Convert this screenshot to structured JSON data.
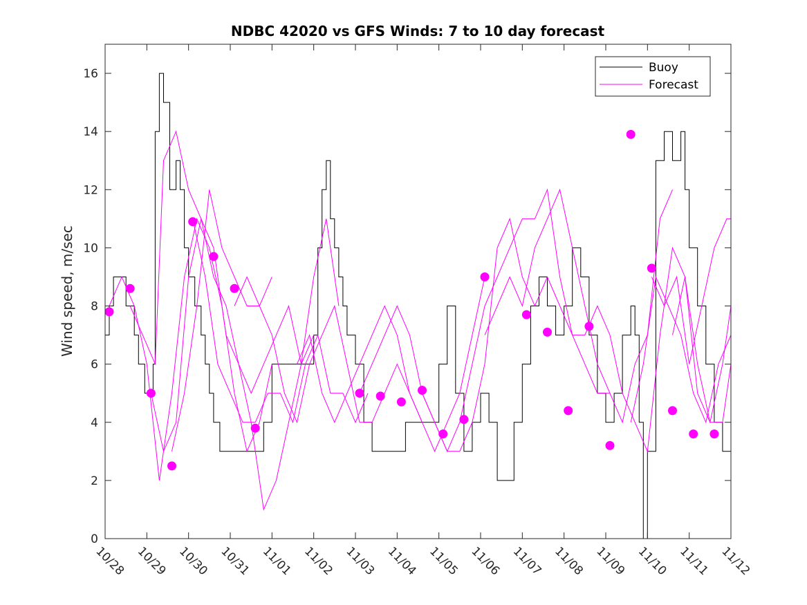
{
  "chart_data": {
    "type": "line",
    "title": "NDBC 42020 vs GFS Winds: 7 to 10 day forecast",
    "xlabel": "",
    "ylabel": "Wind speed, m/sec",
    "xlim": [
      0,
      15
    ],
    "ylim": [
      0,
      17
    ],
    "yticks": [
      0,
      2,
      4,
      6,
      8,
      10,
      12,
      14,
      16
    ],
    "xtick_labels": [
      "10/28",
      "10/29",
      "10/30",
      "10/31",
      "11/01",
      "11/02",
      "11/03",
      "11/04",
      "11/05",
      "11/06",
      "11/07",
      "11/08",
      "11/09",
      "11/10",
      "11/11",
      "11/12"
    ],
    "legend": [
      "Buoy",
      "Forecast"
    ],
    "legend_location": "top-right",
    "colors": {
      "buoy": "#000000",
      "forecast": "#ff00ff"
    },
    "buoy": {
      "name": "Buoy",
      "x": [
        0,
        0.1,
        0.2,
        0.4,
        0.5,
        0.7,
        0.8,
        0.95,
        1.05,
        1.15,
        1.2,
        1.3,
        1.4,
        1.55,
        1.7,
        1.8,
        1.9,
        2.0,
        2.15,
        2.3,
        2.4,
        2.5,
        2.6,
        2.75,
        2.9,
        3.0,
        3.2,
        3.4,
        3.6,
        3.8,
        4.0,
        4.2,
        4.4,
        4.6,
        4.8,
        5.0,
        5.1,
        5.2,
        5.3,
        5.4,
        5.5,
        5.6,
        5.7,
        5.8,
        6.0,
        6.2,
        6.4,
        6.5,
        6.6,
        6.8,
        7.0,
        7.2,
        7.4,
        7.6,
        7.8,
        8.0,
        8.2,
        8.4,
        8.6,
        8.8,
        9.0,
        9.2,
        9.4,
        9.5,
        9.6,
        9.8,
        10.0,
        10.2,
        10.4,
        10.6,
        10.8,
        11.0,
        11.2,
        11.4,
        11.6,
        11.8,
        12.0,
        12.2,
        12.4,
        12.6,
        12.7,
        12.8,
        12.9,
        13.0,
        13.2,
        13.4,
        13.6,
        13.8,
        13.9,
        14.0,
        14.2,
        14.4,
        14.6,
        14.8,
        15.0
      ],
      "y": [
        7,
        8,
        9,
        9,
        8,
        7,
        6,
        5,
        5,
        6,
        14,
        16,
        15,
        12,
        13,
        12,
        10,
        9,
        8,
        7,
        6,
        5,
        4,
        3,
        3,
        3,
        3,
        3,
        3,
        4,
        6,
        6,
        6,
        6,
        6,
        7,
        10,
        12,
        13,
        11,
        10,
        9,
        8,
        7,
        6,
        4,
        3,
        3,
        3,
        3,
        3,
        4,
        4,
        4,
        4,
        6,
        8,
        5,
        3,
        4,
        5,
        4,
        2,
        2,
        2,
        4,
        6,
        8,
        9,
        8,
        7,
        8,
        10,
        9,
        7,
        5,
        4,
        5,
        7,
        8,
        7,
        4,
        0,
        3,
        13,
        14,
        13,
        14,
        12,
        10,
        8,
        6,
        4,
        3,
        4
      ]
    },
    "forecast_series": [
      {
        "name": "Forecast",
        "x": [
          0.1,
          0.4,
          0.7,
          1.0,
          1.3,
          1.6,
          1.9,
          2.2,
          2.5,
          2.8,
          3.1,
          3.4,
          3.7,
          4.0
        ],
        "y": [
          8,
          9,
          8,
          6,
          2,
          5,
          9,
          11,
          10,
          8,
          5,
          3,
          4,
          6
        ]
      },
      {
        "name": "Forecast",
        "x": [
          0.6,
          0.9,
          1.2,
          1.4,
          1.7,
          2.0,
          2.3,
          2.6,
          2.9,
          3.2,
          3.5,
          3.8,
          4.1,
          4.4,
          4.7,
          5.0
        ],
        "y": [
          8,
          7,
          6,
          13,
          14,
          12,
          11,
          9,
          8,
          6,
          5,
          6,
          7,
          8,
          6,
          7
        ]
      },
      {
        "name": "Forecast",
        "x": [
          1.1,
          1.4,
          1.7,
          2.0,
          2.3,
          2.6,
          2.9,
          3.2,
          3.5,
          3.8,
          4.1,
          4.4,
          4.7,
          5.0,
          5.3,
          5.6
        ],
        "y": [
          5,
          3,
          4,
          9,
          11,
          10,
          7,
          6,
          4,
          1,
          2,
          4,
          6,
          9,
          11,
          8
        ]
      },
      {
        "name": "Forecast",
        "x": [
          1.6,
          1.9,
          2.2,
          2.5,
          2.8,
          3.1,
          3.4,
          3.7,
          4.0
        ],
        "y": [
          3,
          5,
          8,
          12,
          10,
          9,
          8,
          8,
          9
        ]
      },
      {
        "name": "Forecast",
        "x": [
          2.1,
          2.4,
          2.7,
          3.0,
          3.3,
          3.6,
          3.9,
          4.2,
          4.5,
          4.8,
          5.1,
          5.4,
          5.7,
          6.0,
          6.3
        ],
        "y": [
          11,
          9,
          6,
          5,
          4,
          4,
          5,
          5,
          4,
          6,
          7,
          5,
          5,
          4,
          5
        ]
      },
      {
        "name": "Forecast",
        "x": [
          3.1,
          3.4,
          3.7,
          4.0,
          4.3,
          4.6,
          4.9,
          5.2,
          5.5,
          5.8,
          6.1,
          6.4,
          6.7,
          7.0,
          7.3,
          7.6
        ],
        "y": [
          8,
          9,
          8,
          7,
          5,
          4,
          6,
          7,
          8,
          6,
          4,
          4,
          5,
          6,
          5,
          4
        ]
      },
      {
        "name": "Forecast",
        "x": [
          4.6,
          4.9,
          5.2,
          5.5,
          5.8,
          6.1,
          6.4,
          6.7,
          7.0,
          7.3,
          7.6,
          7.9,
          8.2,
          8.5,
          8.8,
          9.1
        ],
        "y": [
          6,
          7,
          5,
          4,
          5,
          6,
          7,
          8,
          7,
          5,
          4,
          3,
          4,
          5,
          7,
          9
        ]
      },
      {
        "name": "Forecast",
        "x": [
          6.1,
          6.4,
          6.7,
          7.0,
          7.3,
          7.6,
          7.9,
          8.2,
          8.5,
          8.8,
          9.1,
          9.4,
          9.7,
          10.0,
          10.3,
          10.6
        ],
        "y": [
          5,
          6,
          7,
          8,
          7,
          5,
          4,
          3,
          3,
          4,
          6,
          10,
          11,
          9,
          8,
          9
        ]
      },
      {
        "name": "Forecast",
        "x": [
          7.6,
          7.9,
          8.2,
          8.5,
          8.8,
          9.1,
          9.4,
          9.7,
          10.0,
          10.3,
          10.6,
          10.9,
          11.2,
          11.5,
          11.8,
          12.1
        ],
        "y": [
          5,
          4,
          3,
          4,
          6,
          8,
          9,
          10,
          11,
          11,
          12,
          9,
          7,
          6,
          5,
          5
        ]
      },
      {
        "name": "Forecast",
        "x": [
          9.1,
          9.4,
          9.7,
          10.0,
          10.3,
          10.6,
          10.9,
          11.2,
          11.5,
          11.8,
          12.1,
          12.4,
          12.7,
          13.0,
          13.3,
          13.6
        ],
        "y": [
          7,
          8,
          9,
          8,
          10,
          11,
          12,
          10,
          8,
          6,
          5,
          4,
          6,
          7,
          11,
          12
        ]
      },
      {
        "name": "Forecast",
        "x": [
          10.6,
          10.9,
          11.2,
          11.5,
          11.8,
          12.1,
          12.4,
          12.7,
          13.0,
          13.3,
          13.6,
          13.9,
          14.2,
          14.5,
          14.8,
          15.0
        ],
        "y": [
          9,
          8,
          7,
          7,
          8,
          7,
          5,
          4,
          3,
          7,
          10,
          9,
          5,
          4,
          6,
          8
        ]
      },
      {
        "name": "Forecast",
        "x": [
          12.6,
          12.9,
          13.2,
          13.5,
          13.8,
          14.1,
          14.4,
          14.7,
          15.0
        ],
        "y": [
          4,
          6,
          9,
          8,
          7,
          5,
          4,
          6,
          7
        ]
      },
      {
        "name": "Forecast",
        "x": [
          13.1,
          13.4,
          13.7,
          14.0,
          14.3,
          14.6,
          14.9,
          15.0
        ],
        "y": [
          9,
          8,
          9,
          6,
          8,
          10,
          11,
          11
        ]
      },
      {
        "name": "Forecast",
        "x": [
          13.6,
          13.9,
          14.2,
          14.5,
          14.8,
          15.0
        ],
        "y": [
          7,
          9,
          6,
          4,
          4,
          6
        ]
      }
    ],
    "forecast_points": {
      "name": "Forecast",
      "x": [
        0.1,
        0.6,
        1.1,
        1.6,
        2.1,
        2.6,
        3.1,
        3.6,
        6.1,
        6.6,
        7.1,
        7.6,
        8.1,
        8.6,
        9.1,
        10.1,
        10.6,
        11.1,
        11.6,
        12.1,
        12.6,
        13.1,
        13.6,
        14.1,
        14.6
      ],
      "y": [
        7.8,
        8.6,
        5.0,
        2.5,
        10.9,
        9.7,
        8.6,
        3.8,
        5.0,
        4.9,
        4.7,
        5.1,
        3.6,
        4.1,
        9.0,
        7.7,
        7.1,
        4.4,
        7.3,
        3.2,
        13.9,
        9.3,
        4.4,
        3.6,
        3.6
      ]
    }
  }
}
